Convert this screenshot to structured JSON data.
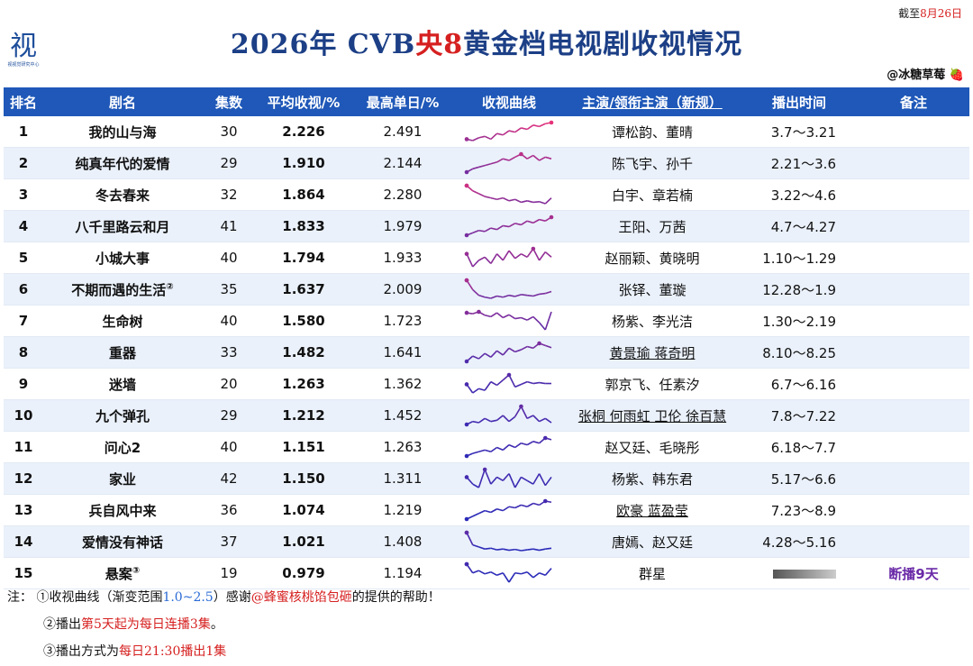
{
  "date_stamp": {
    "prefix": "截至",
    "date": "8月26日"
  },
  "logo": {
    "glyph": "视",
    "sub": "视视觉研究中心"
  },
  "title": {
    "part1": "2026年 CVB",
    "red": "央8",
    "part2": "黄金档电视剧收视情况"
  },
  "credit": {
    "text": "@冰糖草莓",
    "icon": "strawberry-icon",
    "emoji": "🍓"
  },
  "headers": {
    "rank": "排名",
    "name": "剧名",
    "episodes": "集数",
    "avg": "平均收视/%",
    "peak": "最高单日/%",
    "curve": "收视曲线",
    "actors": "主演/领衔主演（新规）",
    "airtime": "播出时间",
    "note": "备注"
  },
  "rows": [
    {
      "rank": "1",
      "name": "我的山与海",
      "episodes": "30",
      "avg": "2.226",
      "peak": "2.491",
      "actors": "谭松韵、董晴",
      "airtime": "3.7～3.21",
      "note": "",
      "curve": [
        1.9,
        1.85,
        1.95,
        2.0,
        1.9,
        2.1,
        2.05,
        2.2,
        2.15,
        2.3,
        2.25,
        2.4,
        2.35,
        2.45,
        2.49
      ]
    },
    {
      "rank": "2",
      "name": "纯真年代的爱情",
      "episodes": "29",
      "avg": "1.910",
      "peak": "2.144",
      "actors": "陈飞宇、孙千",
      "airtime": "2.21～3.6",
      "note": "",
      "curve": [
        1.6,
        1.7,
        1.75,
        1.8,
        1.85,
        1.9,
        2.0,
        1.95,
        2.05,
        2.14,
        2.0,
        2.1,
        1.95,
        2.05,
        2.0
      ]
    },
    {
      "rank": "3",
      "name": "冬去春来",
      "episodes": "32",
      "avg": "1.864",
      "peak": "2.280",
      "actors": "白宇、章若楠",
      "airtime": "3.22～4.6",
      "note": "",
      "curve": [
        2.28,
        2.1,
        2.0,
        1.9,
        1.85,
        1.8,
        1.85,
        1.75,
        1.8,
        1.7,
        1.75,
        1.7,
        1.72,
        1.65,
        1.85
      ]
    },
    {
      "rank": "4",
      "name": "八千里路云和月",
      "episodes": "41",
      "avg": "1.833",
      "peak": "1.979",
      "actors": "王阳、万茜",
      "airtime": "4.7～4.27",
      "note": "",
      "curve": [
        1.6,
        1.65,
        1.7,
        1.68,
        1.75,
        1.72,
        1.8,
        1.78,
        1.85,
        1.82,
        1.9,
        1.86,
        1.93,
        1.9,
        1.98
      ]
    },
    {
      "rank": "5",
      "name": "小城大事",
      "episodes": "40",
      "avg": "1.794",
      "peak": "1.933",
      "actors": "赵丽颖、黄晓明",
      "airtime": "1.10～1.29",
      "note": "",
      "curve": [
        1.85,
        1.65,
        1.75,
        1.8,
        1.7,
        1.85,
        1.75,
        1.9,
        1.78,
        1.85,
        1.8,
        1.93,
        1.75,
        1.88,
        1.8
      ]
    },
    {
      "rank": "6",
      "name": "不期而遇的生活",
      "sup": "②",
      "episodes": "35",
      "avg": "1.637",
      "peak": "2.009",
      "actors": "张铎、董璇",
      "airtime": "12.28～1.9",
      "note": "",
      "curve": [
        2.0,
        1.75,
        1.6,
        1.55,
        1.52,
        1.58,
        1.55,
        1.6,
        1.57,
        1.62,
        1.6,
        1.58,
        1.63,
        1.65,
        1.7
      ]
    },
    {
      "rank": "7",
      "name": "生命树",
      "episodes": "40",
      "avg": "1.580",
      "peak": "1.723",
      "actors": "杨紫、李光洁",
      "airtime": "1.30～2.19",
      "note": "",
      "curve": [
        1.7,
        1.68,
        1.72,
        1.65,
        1.62,
        1.7,
        1.6,
        1.66,
        1.58,
        1.6,
        1.55,
        1.62,
        1.5,
        1.35,
        1.72
      ]
    },
    {
      "rank": "8",
      "name": "重器",
      "episodes": "33",
      "avg": "1.482",
      "peak": "1.641",
      "actors": "黄景瑜 蒋奇明",
      "underline": true,
      "airtime": "8.10～8.25",
      "note": "",
      "curve": [
        1.3,
        1.4,
        1.35,
        1.45,
        1.38,
        1.5,
        1.42,
        1.55,
        1.48,
        1.52,
        1.58,
        1.55,
        1.64,
        1.6,
        1.56
      ]
    },
    {
      "rank": "9",
      "name": "迷墙",
      "episodes": "20",
      "avg": "1.263",
      "peak": "1.362",
      "actors": "郭京飞、任素汐",
      "airtime": "6.7～6.16",
      "note": "",
      "curve": [
        1.25,
        1.15,
        1.2,
        1.18,
        1.28,
        1.24,
        1.3,
        1.36,
        1.22,
        1.25,
        1.28,
        1.26,
        1.27,
        1.26,
        1.26
      ]
    },
    {
      "rank": "10",
      "name": "九个弹孔",
      "episodes": "29",
      "avg": "1.212",
      "peak": "1.452",
      "actors": "张桐 何雨虹 卫伦 徐百慧",
      "underline": true,
      "airtime": "7.8～7.22",
      "note": "",
      "curve": [
        1.15,
        1.2,
        1.18,
        1.25,
        1.2,
        1.22,
        1.3,
        1.2,
        1.28,
        1.45,
        1.25,
        1.3,
        1.2,
        1.25,
        1.18
      ]
    },
    {
      "rank": "11",
      "name": "问心2",
      "episodes": "40",
      "avg": "1.151",
      "peak": "1.263",
      "actors": "赵又廷、毛晓彤",
      "airtime": "6.18～7.7",
      "note": "",
      "curve": [
        1.05,
        1.08,
        1.1,
        1.12,
        1.1,
        1.15,
        1.12,
        1.18,
        1.15,
        1.2,
        1.18,
        1.22,
        1.2,
        1.26,
        1.24
      ]
    },
    {
      "rank": "12",
      "name": "家业",
      "episodes": "42",
      "avg": "1.150",
      "peak": "1.311",
      "actors": "杨紫、韩东君",
      "airtime": "5.17～6.6",
      "note": "",
      "curve": [
        1.2,
        1.1,
        1.05,
        1.31,
        1.1,
        1.2,
        1.15,
        1.25,
        1.05,
        1.2,
        1.15,
        1.1,
        1.25,
        1.08,
        1.2
      ]
    },
    {
      "rank": "13",
      "name": "兵自风中来",
      "episodes": "36",
      "avg": "1.074",
      "peak": "1.219",
      "actors": "欧豪 蓝盈莹",
      "underline": true,
      "airtime": "7.23～8.9",
      "note": "",
      "curve": [
        0.9,
        0.95,
        1.0,
        1.05,
        1.02,
        1.08,
        1.05,
        1.12,
        1.1,
        1.15,
        1.12,
        1.18,
        1.15,
        1.22,
        1.2
      ]
    },
    {
      "rank": "14",
      "name": "爱情没有神话",
      "episodes": "37",
      "avg": "1.021",
      "peak": "1.408",
      "actors": "唐嫣、赵又廷",
      "airtime": "4.28～5.16",
      "note": "",
      "curve": [
        1.4,
        1.1,
        1.05,
        1.0,
        1.02,
        0.98,
        1.0,
        0.97,
        0.99,
        0.96,
        0.98,
        1.0,
        0.97,
        1.0,
        1.02
      ]
    },
    {
      "rank": "15",
      "name": "悬案",
      "sup": "③",
      "episodes": "19",
      "avg": "0.979",
      "peak": "1.194",
      "actors": "群星",
      "airtime": "",
      "masked": true,
      "note": "断播9天",
      "curve": [
        1.19,
        1.0,
        1.05,
        0.98,
        1.02,
        0.95,
        1.0,
        0.8,
        1.0,
        0.98,
        1.02,
        0.9,
        1.0,
        0.95,
        1.1
      ]
    }
  ],
  "notes": {
    "lead": "注：",
    "n1_a": "①收视曲线（渐变范围",
    "n1_range": "1.0~2.5",
    "n1_b": "）感谢",
    "n1_user": "@蜂蜜核桃馅包砸",
    "n1_c": "的提供的帮助！",
    "n2_a": "②播出",
    "n2_red": "第5天起为每日连播3集",
    "n2_b": "。",
    "n3_a": "③播出方式为",
    "n3_red": "每日21:30播出1集"
  },
  "colors": {
    "header_bg": "#1f58b8",
    "title": "#1c3f86",
    "accent_red": "#d62020",
    "row_alt": "#eaf1fb",
    "curve_high": "#e8327a",
    "curve_low": "#2a2ab8",
    "note_purple": "#6a2aa7"
  }
}
